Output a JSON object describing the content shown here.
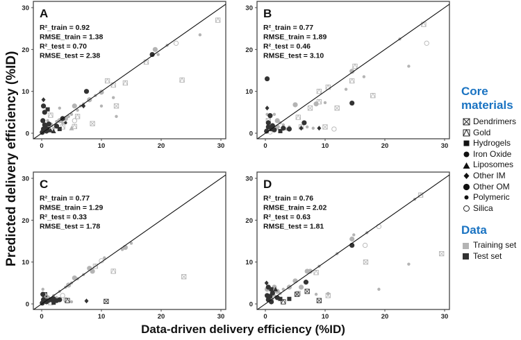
{
  "y_axis_label": "Predicted delivery efficiency (%ID)",
  "x_axis_label": "Data-driven delivery efficiency (%ID)",
  "legend": {
    "core_title_line1": "Core",
    "core_title_line2": "materials",
    "core_items": [
      {
        "key": "D",
        "label": "Dendrimers"
      },
      {
        "key": "G",
        "label": "Gold"
      },
      {
        "key": "H",
        "label": "Hydrogels"
      },
      {
        "key": "I",
        "label": "Iron Oxide"
      },
      {
        "key": "L",
        "label": "Liposomes"
      },
      {
        "key": "M",
        "label": "Other IM"
      },
      {
        "key": "O",
        "label": "Other OM"
      },
      {
        "key": "P",
        "label": "Polymeric"
      },
      {
        "key": "S",
        "label": "Silica"
      }
    ],
    "data_title": "Data",
    "data_items": [
      {
        "label": "Training set",
        "color": "#b4b4b4"
      },
      {
        "label": "Test set",
        "color": "#333333"
      }
    ]
  },
  "colors": {
    "train": "#b4b4b4",
    "test": "#333333",
    "accent": "#1a73c2"
  },
  "chart_data": [
    {
      "type": "scatter",
      "panel": "A",
      "xlim": [
        0,
        30
      ],
      "ylim": [
        0,
        30
      ],
      "ticks": [
        0,
        10,
        20,
        30
      ],
      "reference_line": "y = x",
      "stats": [
        "R²_train = 0.92",
        "RMSE_train = 1.38",
        "R²_test = 0.70",
        "RMSE_test = 2.38"
      ],
      "points_format": [
        "x",
        "y",
        "material",
        "set"
      ],
      "points": [
        [
          0.5,
          1,
          "P",
          "train"
        ],
        [
          1,
          1.5,
          "P",
          "train"
        ],
        [
          1.5,
          2,
          "O",
          "train"
        ],
        [
          2,
          1.2,
          "P",
          "train"
        ],
        [
          2.5,
          2.8,
          "P",
          "train"
        ],
        [
          3,
          3,
          "O",
          "train"
        ],
        [
          3.5,
          2.5,
          "P",
          "train"
        ],
        [
          4,
          3.5,
          "O",
          "train"
        ],
        [
          4.5,
          4,
          "P",
          "train"
        ],
        [
          5,
          4.5,
          "P",
          "train"
        ],
        [
          5.5,
          6.5,
          "O",
          "train"
        ],
        [
          6,
          5.5,
          "P",
          "train"
        ],
        [
          6.5,
          6.5,
          "P",
          "train"
        ],
        [
          7,
          7,
          "P",
          "train"
        ],
        [
          8,
          8,
          "O",
          "train"
        ],
        [
          9,
          9,
          "P",
          "train"
        ],
        [
          10,
          9.8,
          "O",
          "train"
        ],
        [
          12,
          8.5,
          "P",
          "train"
        ],
        [
          10,
          6.5,
          "P",
          "train"
        ],
        [
          12.5,
          4,
          "P",
          "train"
        ],
        [
          17.5,
          17,
          "G",
          "train"
        ],
        [
          19,
          20,
          "O",
          "train"
        ],
        [
          19.5,
          18.8,
          "P",
          "train"
        ],
        [
          21,
          21,
          "P",
          "train"
        ],
        [
          22.5,
          21.5,
          "S",
          "train"
        ],
        [
          26.5,
          23.5,
          "P",
          "train"
        ],
        [
          29.5,
          27,
          "G",
          "train"
        ],
        [
          11,
          12.5,
          "G",
          "train"
        ],
        [
          14,
          12,
          "G",
          "train"
        ],
        [
          12,
          11.5,
          "G",
          "train"
        ],
        [
          23.5,
          12.7,
          "G",
          "train"
        ],
        [
          5.5,
          3,
          "S",
          "train"
        ],
        [
          6,
          4,
          "G",
          "train"
        ],
        [
          3,
          6,
          "P",
          "train"
        ],
        [
          1,
          3,
          "P",
          "train"
        ],
        [
          12.5,
          6.5,
          "D",
          "train"
        ],
        [
          8.5,
          2.3,
          "D",
          "train"
        ],
        [
          1.5,
          4.3,
          "G",
          "train"
        ],
        [
          5.5,
          1.6,
          "G",
          "train"
        ],
        [
          3.5,
          1.5,
          "G",
          "train"
        ],
        [
          5,
          1.2,
          "L",
          "train"
        ],
        [
          0.3,
          8,
          "M",
          "test"
        ],
        [
          0.3,
          6.5,
          "O",
          "test"
        ],
        [
          0.5,
          5,
          "O",
          "test"
        ],
        [
          1,
          5.7,
          "H",
          "test"
        ],
        [
          0.2,
          3,
          "O",
          "test"
        ],
        [
          0.5,
          2,
          "O",
          "test"
        ],
        [
          0.3,
          1,
          "O",
          "test"
        ],
        [
          0.8,
          0.5,
          "O",
          "test"
        ],
        [
          1,
          1,
          "H",
          "test"
        ],
        [
          1.5,
          0.7,
          "L",
          "test"
        ],
        [
          2,
          0.5,
          "L",
          "test"
        ],
        [
          3,
          1,
          "H",
          "test"
        ],
        [
          3.5,
          3.5,
          "O",
          "test"
        ],
        [
          7.5,
          10,
          "O",
          "test"
        ],
        [
          7,
          6.5,
          "M",
          "test"
        ],
        [
          18.5,
          18.8,
          "O",
          "test"
        ],
        [
          0.6,
          1.5,
          "O",
          "test"
        ],
        [
          1.2,
          2.2,
          "O",
          "test"
        ],
        [
          0.1,
          0.2,
          "O",
          "test"
        ],
        [
          2.5,
          1.7,
          "O",
          "test"
        ],
        [
          4,
          2.5,
          "P",
          "test"
        ]
      ]
    },
    {
      "type": "scatter",
      "panel": "B",
      "xlim": [
        0,
        30
      ],
      "ylim": [
        0,
        30
      ],
      "ticks": [
        0,
        10,
        20,
        30
      ],
      "reference_line": "y = x",
      "stats": [
        "R²_train = 0.77",
        "RMSE_train = 1.89",
        "R²_test = 0.46",
        "RMSE_test = 3.10"
      ],
      "points_format": [
        "x",
        "y",
        "material",
        "set"
      ],
      "points": [
        [
          0.3,
          4.5,
          "P",
          "train"
        ],
        [
          0.5,
          3,
          "D",
          "train"
        ],
        [
          1.5,
          4.5,
          "P",
          "train"
        ],
        [
          2,
          3,
          "O",
          "train"
        ],
        [
          2.5,
          2.5,
          "P",
          "train"
        ],
        [
          3,
          2,
          "P",
          "train"
        ],
        [
          4,
          1.5,
          "P",
          "train"
        ],
        [
          5,
          6.8,
          "O",
          "train"
        ],
        [
          5.5,
          3.8,
          "G",
          "train"
        ],
        [
          6,
          1.5,
          "G",
          "train"
        ],
        [
          7,
          1.5,
          "P",
          "train"
        ],
        [
          8,
          1.2,
          "P",
          "train"
        ],
        [
          8.5,
          7,
          "O",
          "train"
        ],
        [
          9,
          7.5,
          "G",
          "train"
        ],
        [
          9,
          10,
          "G",
          "train"
        ],
        [
          10,
          7.3,
          "P",
          "train"
        ],
        [
          10.5,
          11,
          "G",
          "train"
        ],
        [
          13.5,
          10.5,
          "P",
          "train"
        ],
        [
          14.5,
          14.8,
          "O",
          "train"
        ],
        [
          15,
          16,
          "G",
          "train"
        ],
        [
          14.5,
          12.5,
          "G",
          "train"
        ],
        [
          16.5,
          13.5,
          "P",
          "train"
        ],
        [
          18,
          9,
          "G",
          "train"
        ],
        [
          22.5,
          22.5,
          "P",
          "train"
        ],
        [
          24,
          16,
          "P",
          "train"
        ],
        [
          26.5,
          26,
          "G",
          "train"
        ],
        [
          27,
          21.5,
          "S",
          "train"
        ],
        [
          1,
          1,
          "O",
          "train"
        ],
        [
          2,
          1.5,
          "O",
          "train"
        ],
        [
          3.5,
          1,
          "P",
          "train"
        ],
        [
          10,
          1.5,
          "D",
          "train"
        ],
        [
          11.5,
          1,
          "S",
          "train"
        ],
        [
          7.5,
          6,
          "D",
          "train"
        ],
        [
          12,
          6,
          "D",
          "train"
        ],
        [
          0.8,
          0.3,
          "S",
          "train"
        ],
        [
          0.3,
          13,
          "O",
          "test"
        ],
        [
          0.3,
          6,
          "M",
          "test"
        ],
        [
          0.8,
          4.2,
          "O",
          "test"
        ],
        [
          0.5,
          1.5,
          "O",
          "test"
        ],
        [
          0.2,
          0.5,
          "O",
          "test"
        ],
        [
          1,
          1,
          "H",
          "test"
        ],
        [
          1.5,
          0.8,
          "O",
          "test"
        ],
        [
          2.5,
          0.5,
          "H",
          "test"
        ],
        [
          3,
          1.2,
          "O",
          "test"
        ],
        [
          4,
          1,
          "O",
          "test"
        ],
        [
          6.5,
          2.5,
          "O",
          "test"
        ],
        [
          6,
          1.2,
          "M",
          "test"
        ],
        [
          9,
          1.2,
          "M",
          "test"
        ],
        [
          14.5,
          7.2,
          "O",
          "test"
        ],
        [
          0.5,
          2.5,
          "O",
          "test"
        ],
        [
          1.2,
          1.8,
          "O",
          "test"
        ]
      ]
    },
    {
      "type": "scatter",
      "panel": "C",
      "xlim": [
        0,
        30
      ],
      "ylim": [
        0,
        30
      ],
      "ticks": [
        0,
        10,
        20,
        30
      ],
      "reference_line": "y = x",
      "stats": [
        "R²_train = 0.77",
        "RMSE_train = 1.29",
        "R²_test = 0.33",
        "RMSE_test = 1.78"
      ],
      "points_format": [
        "x",
        "y",
        "material",
        "set"
      ],
      "points": [
        [
          0.2,
          3.5,
          "P",
          "train"
        ],
        [
          1,
          1.5,
          "O",
          "train"
        ],
        [
          2,
          2,
          "P",
          "train"
        ],
        [
          2.5,
          1.5,
          "P",
          "train"
        ],
        [
          3,
          3,
          "P",
          "train"
        ],
        [
          3.5,
          2,
          "S",
          "train"
        ],
        [
          4,
          4,
          "P",
          "train"
        ],
        [
          4.5,
          4.5,
          "O",
          "train"
        ],
        [
          5,
          5,
          "P",
          "train"
        ],
        [
          5.5,
          6.2,
          "O",
          "train"
        ],
        [
          6,
          6,
          "P",
          "train"
        ],
        [
          7,
          7,
          "P",
          "train"
        ],
        [
          8,
          8.5,
          "O",
          "train"
        ],
        [
          8.5,
          7.8,
          "O",
          "train"
        ],
        [
          9,
          9,
          "G",
          "train"
        ],
        [
          10,
          10.3,
          "S",
          "train"
        ],
        [
          10.5,
          11,
          "P",
          "train"
        ],
        [
          13.5,
          13,
          "P",
          "train"
        ],
        [
          14,
          13.5,
          "O",
          "train"
        ],
        [
          15,
          14.5,
          "P",
          "train"
        ],
        [
          12,
          7.8,
          "G",
          "train"
        ],
        [
          23.8,
          6.5,
          "D",
          "train"
        ],
        [
          4,
          1,
          "S",
          "train"
        ],
        [
          5,
          0.5,
          "P",
          "train"
        ],
        [
          1.5,
          0.3,
          "G",
          "train"
        ],
        [
          0.2,
          2.3,
          "O",
          "test"
        ],
        [
          0.5,
          2.2,
          "D",
          "test"
        ],
        [
          0.3,
          1,
          "O",
          "test"
        ],
        [
          0.8,
          0.5,
          "O",
          "test"
        ],
        [
          1,
          0.8,
          "H",
          "test"
        ],
        [
          1.5,
          1,
          "O",
          "test"
        ],
        [
          2,
          1.2,
          "O",
          "test"
        ],
        [
          2.5,
          0.8,
          "O",
          "test"
        ],
        [
          3,
          1,
          "O",
          "test"
        ],
        [
          0.1,
          0.2,
          "O",
          "test"
        ],
        [
          4.3,
          0.8,
          "G",
          "test"
        ],
        [
          7.5,
          0.7,
          "M",
          "test"
        ],
        [
          10.8,
          0.6,
          "D",
          "test"
        ],
        [
          2,
          0.3,
          "H",
          "test"
        ]
      ]
    },
    {
      "type": "scatter",
      "panel": "D",
      "xlim": [
        0,
        30
      ],
      "ylim": [
        0,
        30
      ],
      "ticks": [
        0,
        10,
        20,
        30
      ],
      "reference_line": "y = x",
      "stats": [
        "R²_train = 0.76",
        "RMSE_train = 2.02",
        "R²_test = 0.63",
        "RMSE_test = 1.81"
      ],
      "points_format": [
        "x",
        "y",
        "material",
        "set"
      ],
      "points": [
        [
          0.3,
          3.5,
          "O",
          "train"
        ],
        [
          1,
          2.5,
          "P",
          "train"
        ],
        [
          1.5,
          2,
          "P",
          "train"
        ],
        [
          2,
          3,
          "O",
          "train"
        ],
        [
          2.5,
          2.5,
          "P",
          "train"
        ],
        [
          3,
          3.5,
          "P",
          "train"
        ],
        [
          4,
          4,
          "O",
          "train"
        ],
        [
          5,
          5.5,
          "O",
          "train"
        ],
        [
          6,
          4,
          "O",
          "train"
        ],
        [
          7,
          7.8,
          "O",
          "train"
        ],
        [
          7.5,
          7.8,
          "O",
          "train"
        ],
        [
          8.5,
          7.5,
          "G",
          "train"
        ],
        [
          9,
          9,
          "P",
          "train"
        ],
        [
          10.5,
          2.5,
          "P",
          "train"
        ],
        [
          10.5,
          2,
          "D",
          "train"
        ],
        [
          8.5,
          2.3,
          "P",
          "train"
        ],
        [
          12,
          12,
          "P",
          "train"
        ],
        [
          14.5,
          15.5,
          "O",
          "train"
        ],
        [
          14.8,
          16.5,
          "P",
          "train"
        ],
        [
          16.7,
          14,
          "S",
          "train"
        ],
        [
          17,
          17,
          "P",
          "train"
        ],
        [
          19,
          18.5,
          "S",
          "train"
        ],
        [
          19,
          3.5,
          "P",
          "train"
        ],
        [
          16.8,
          10,
          "D",
          "train"
        ],
        [
          24,
          9.5,
          "P",
          "train"
        ],
        [
          25,
          25,
          "P",
          "train"
        ],
        [
          26,
          26,
          "G",
          "train"
        ],
        [
          29.5,
          12,
          "D",
          "train"
        ],
        [
          0.5,
          1.5,
          "O",
          "train"
        ],
        [
          1,
          1,
          "O",
          "train"
        ],
        [
          1.5,
          4,
          "O",
          "train"
        ],
        [
          5.5,
          2.5,
          "G",
          "train"
        ],
        [
          0.2,
          5,
          "M",
          "test"
        ],
        [
          0.5,
          4,
          "O",
          "test"
        ],
        [
          1,
          3.5,
          "H",
          "test"
        ],
        [
          1.7,
          3.5,
          "L",
          "test"
        ],
        [
          0.3,
          2,
          "O",
          "test"
        ],
        [
          0.5,
          1,
          "O",
          "test"
        ],
        [
          1,
          0.5,
          "O",
          "test"
        ],
        [
          2,
          1.5,
          "O",
          "test"
        ],
        [
          2.5,
          1.2,
          "H",
          "test"
        ],
        [
          3,
          0.5,
          "G",
          "test"
        ],
        [
          4,
          1.2,
          "H",
          "test"
        ],
        [
          6.8,
          5.2,
          "O",
          "test"
        ],
        [
          7,
          3,
          "D",
          "test"
        ],
        [
          9,
          0.8,
          "D",
          "test"
        ],
        [
          14.5,
          14,
          "O",
          "test"
        ],
        [
          5.3,
          2.3,
          "D",
          "test"
        ],
        [
          0.8,
          1.8,
          "O",
          "test"
        ],
        [
          1.2,
          2.6,
          "O",
          "test"
        ]
      ]
    }
  ]
}
